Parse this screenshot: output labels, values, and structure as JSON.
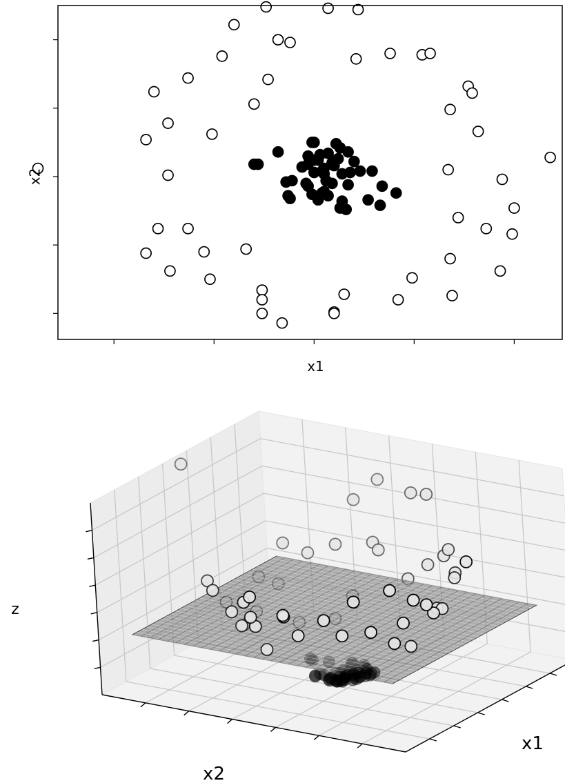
{
  "chart_data": [
    {
      "type": "scatter",
      "xlabel": "x1",
      "ylabel": "x2",
      "xlim": [
        -1.28,
        1.24
      ],
      "ylim": [
        -1.19,
        1.25
      ],
      "x_ticks": [
        -1.0,
        -0.5,
        0.0,
        0.5,
        1.0
      ],
      "y_ticks": [
        -1.0,
        -0.5,
        0.0,
        0.5,
        1.0
      ],
      "tick_labels_visible": false,
      "grid": false,
      "series": [
        {
          "marker": "open-circle",
          "color": "#000000",
          "points": [
            [
              -1.38,
              0.06
            ],
            [
              -0.8,
              0.62
            ],
            [
              -0.84,
              0.27
            ],
            [
              -0.73,
              0.39
            ],
            [
              -0.63,
              0.72
            ],
            [
              -0.73,
              0.01
            ],
            [
              -0.51,
              0.31
            ],
            [
              -0.78,
              -0.38
            ],
            [
              -0.84,
              -0.56
            ],
            [
              -0.72,
              -0.69
            ],
            [
              -0.63,
              -0.38
            ],
            [
              -0.55,
              -0.55
            ],
            [
              -0.52,
              -0.75
            ],
            [
              -0.34,
              -0.53
            ],
            [
              -0.46,
              0.88
            ],
            [
              -0.4,
              1.11
            ],
            [
              -0.3,
              0.53
            ],
            [
              -0.23,
              0.71
            ],
            [
              -0.24,
              1.24
            ],
            [
              -0.18,
              1.0
            ],
            [
              -0.12,
              0.98
            ],
            [
              -0.26,
              -0.83
            ],
            [
              -0.26,
              -0.9
            ],
            [
              -0.26,
              -1.0
            ],
            [
              -0.16,
              -1.07
            ],
            [
              0.1,
              -0.99
            ],
            [
              0.1,
              -1.0
            ],
            [
              0.15,
              -0.86
            ],
            [
              0.07,
              1.23
            ],
            [
              0.22,
              1.22
            ],
            [
              0.21,
              0.86
            ],
            [
              0.38,
              0.9
            ],
            [
              0.54,
              0.89
            ],
            [
              0.58,
              0.9
            ],
            [
              0.68,
              0.49
            ],
            [
              0.77,
              0.66
            ],
            [
              0.79,
              0.61
            ],
            [
              0.82,
              0.33
            ],
            [
              0.67,
              0.05
            ],
            [
              0.72,
              -0.3
            ],
            [
              0.94,
              -0.02
            ],
            [
              1.0,
              -0.23
            ],
            [
              1.18,
              0.14
            ],
            [
              0.86,
              -0.38
            ],
            [
              0.99,
              -0.42
            ],
            [
              0.68,
              -0.6
            ],
            [
              0.69,
              -0.87
            ],
            [
              0.93,
              -0.69
            ],
            [
              0.49,
              -0.74
            ],
            [
              0.42,
              -0.9
            ]
          ]
        },
        {
          "marker": "filled-circle",
          "color": "#000000",
          "points": [
            [
              -0.3,
              0.09
            ],
            [
              -0.28,
              0.09
            ],
            [
              -0.18,
              0.18
            ],
            [
              -0.14,
              -0.04
            ],
            [
              -0.11,
              -0.03
            ],
            [
              -0.13,
              -0.14
            ],
            [
              -0.04,
              -0.05
            ],
            [
              -0.03,
              -0.07
            ],
            [
              -0.12,
              -0.16
            ],
            [
              -0.03,
              0.15
            ],
            [
              -0.01,
              0.25
            ],
            [
              0.0,
              0.25
            ],
            [
              -0.03,
              0.09
            ],
            [
              0.03,
              0.16
            ],
            [
              0.02,
              0.12
            ],
            [
              0.0,
              0.03
            ],
            [
              0.05,
              0.06
            ],
            [
              0.04,
              0.04
            ],
            [
              0.07,
              0.17
            ],
            [
              0.09,
              0.1
            ],
            [
              0.05,
              0.02
            ],
            [
              0.06,
              -0.03
            ],
            [
              0.11,
              0.24
            ],
            [
              0.13,
              0.21
            ],
            [
              0.12,
              0.13
            ],
            [
              0.1,
              0.08
            ],
            [
              0.14,
              0.02
            ],
            [
              0.09,
              -0.05
            ],
            [
              0.17,
              0.18
            ],
            [
              0.2,
              0.11
            ],
            [
              0.18,
              0.03
            ],
            [
              0.17,
              -0.06
            ],
            [
              0.04,
              -0.12
            ],
            [
              0.02,
              -0.17
            ],
            [
              -0.01,
              -0.13
            ],
            [
              0.07,
              -0.14
            ],
            [
              0.14,
              -0.18
            ],
            [
              0.13,
              -0.23
            ],
            [
              0.05,
              -0.11
            ],
            [
              0.23,
              0.04
            ],
            [
              0.27,
              -0.17
            ],
            [
              0.29,
              0.04
            ],
            [
              0.33,
              -0.21
            ],
            [
              0.34,
              -0.07
            ],
            [
              0.41,
              -0.12
            ],
            [
              -0.06,
              0.07
            ],
            [
              0.0,
              0.12
            ],
            [
              0.16,
              -0.24
            ]
          ]
        }
      ]
    },
    {
      "type": "scatter3d",
      "xlabel": "x1",
      "ylabel": "x2",
      "zlabel": "z",
      "xlim": [
        -1.4,
        1.4
      ],
      "ylim": [
        -1.4,
        1.4
      ],
      "zlim": [
        0,
        2
      ],
      "tick_labels_visible": false,
      "view": {
        "elev": 25,
        "azim": -55
      },
      "plane": {
        "type": "wireframe",
        "z": 0.6,
        "color": "#777777"
      },
      "series": [
        {
          "marker": "open-circle",
          "face_color": "#e6e6e6",
          "points": [
            [
              -1.38,
              0.06,
              1.91
            ],
            [
              -0.8,
              0.62,
              1.02
            ],
            [
              -0.84,
              0.27,
              0.78
            ],
            [
              -0.73,
              0.39,
              0.69
            ],
            [
              -0.63,
              0.72,
              0.92
            ],
            [
              -0.73,
              0.01,
              0.53
            ],
            [
              -0.51,
              0.31,
              0.36
            ],
            [
              -0.78,
              -0.38,
              0.75
            ],
            [
              -0.84,
              -0.56,
              1.02
            ],
            [
              -0.72,
              -0.69,
              0.99
            ],
            [
              -0.63,
              -0.38,
              0.54
            ],
            [
              -0.55,
              -0.55,
              0.61
            ],
            [
              -0.52,
              -0.75,
              0.83
            ],
            [
              -0.34,
              -0.53,
              0.4
            ],
            [
              -0.46,
              0.88,
              0.99
            ],
            [
              -0.4,
              1.11,
              1.39
            ],
            [
              -0.3,
              0.53,
              0.37
            ],
            [
              -0.23,
              0.71,
              0.56
            ],
            [
              -0.24,
              1.24,
              1.59
            ],
            [
              -0.18,
              1.0,
              1.03
            ],
            [
              -0.12,
              0.98,
              0.97
            ],
            [
              -0.26,
              -0.83,
              0.76
            ],
            [
              -0.26,
              -0.9,
              0.88
            ],
            [
              -0.26,
              -1.0,
              1.07
            ],
            [
              -0.16,
              -1.07,
              1.17
            ],
            [
              0.1,
              -0.99,
              0.99
            ],
            [
              0.1,
              -1.0,
              1.01
            ],
            [
              0.15,
              -0.86,
              0.76
            ],
            [
              0.07,
              1.23,
              1.52
            ],
            [
              0.22,
              1.22,
              1.54
            ],
            [
              0.21,
              0.86,
              0.78
            ],
            [
              0.38,
              0.9,
              0.95
            ],
            [
              0.54,
              0.89,
              1.08
            ],
            [
              0.58,
              0.9,
              1.15
            ],
            [
              0.68,
              0.49,
              0.7
            ],
            [
              0.77,
              0.66,
              1.03
            ],
            [
              0.79,
              0.61,
              1.0
            ],
            [
              0.82,
              0.33,
              0.78
            ],
            [
              0.67,
              0.05,
              0.45
            ],
            [
              0.72,
              -0.3,
              0.61
            ],
            [
              0.94,
              -0.02,
              0.88
            ],
            [
              1.0,
              -0.23,
              1.05
            ],
            [
              1.18,
              0.14,
              1.41
            ],
            [
              0.86,
              -0.38,
              0.88
            ],
            [
              0.99,
              -0.42,
              1.16
            ],
            [
              0.68,
              -0.6,
              0.82
            ],
            [
              0.69,
              -0.87,
              1.23
            ],
            [
              0.93,
              -0.69,
              1.34
            ],
            [
              0.49,
              -0.74,
              0.79
            ],
            [
              0.42,
              -0.9,
              0.99
            ]
          ]
        },
        {
          "marker": "filled-circle",
          "face_color": "#000000",
          "points": [
            [
              -0.3,
              0.09,
              0.1
            ],
            [
              -0.28,
              0.09,
              0.09
            ],
            [
              -0.18,
              0.18,
              0.06
            ],
            [
              -0.14,
              -0.04,
              0.02
            ],
            [
              -0.11,
              -0.03,
              0.01
            ],
            [
              -0.13,
              -0.14,
              0.04
            ],
            [
              -0.04,
              -0.05,
              0.0
            ],
            [
              -0.03,
              -0.07,
              0.01
            ],
            [
              -0.12,
              -0.16,
              0.04
            ],
            [
              -0.03,
              0.15,
              0.02
            ],
            [
              -0.01,
              0.25,
              0.06
            ],
            [
              0.0,
              0.25,
              0.06
            ],
            [
              -0.03,
              0.09,
              0.01
            ],
            [
              0.03,
              0.16,
              0.03
            ],
            [
              0.02,
              0.12,
              0.01
            ],
            [
              0.0,
              0.03,
              0.0
            ],
            [
              0.05,
              0.06,
              0.01
            ],
            [
              0.04,
              0.04,
              0.0
            ],
            [
              0.07,
              0.17,
              0.03
            ],
            [
              0.09,
              0.1,
              0.02
            ],
            [
              0.05,
              0.02,
              0.0
            ],
            [
              0.06,
              -0.03,
              0.0
            ],
            [
              0.11,
              0.24,
              0.07
            ],
            [
              0.13,
              0.21,
              0.06
            ],
            [
              0.12,
              0.13,
              0.03
            ],
            [
              0.1,
              0.08,
              0.02
            ],
            [
              0.14,
              0.02,
              0.02
            ],
            [
              0.09,
              -0.05,
              0.01
            ],
            [
              0.17,
              0.18,
              0.06
            ],
            [
              0.2,
              0.11,
              0.05
            ],
            [
              0.18,
              0.03,
              0.03
            ],
            [
              0.17,
              -0.06,
              0.03
            ],
            [
              0.04,
              -0.12,
              0.02
            ],
            [
              0.02,
              -0.17,
              0.03
            ],
            [
              -0.01,
              -0.13,
              0.02
            ],
            [
              0.07,
              -0.14,
              0.02
            ],
            [
              0.14,
              -0.18,
              0.05
            ],
            [
              0.13,
              -0.23,
              0.07
            ],
            [
              0.05,
              -0.11,
              0.01
            ],
            [
              0.23,
              0.04,
              0.05
            ],
            [
              0.27,
              -0.17,
              0.1
            ],
            [
              0.29,
              0.04,
              0.09
            ],
            [
              0.33,
              -0.21,
              0.15
            ],
            [
              0.34,
              -0.07,
              0.12
            ],
            [
              0.41,
              -0.12,
              0.18
            ],
            [
              -0.06,
              0.07,
              0.01
            ],
            [
              0.0,
              0.12,
              0.01
            ],
            [
              0.16,
              -0.24,
              0.08
            ]
          ]
        }
      ]
    }
  ]
}
